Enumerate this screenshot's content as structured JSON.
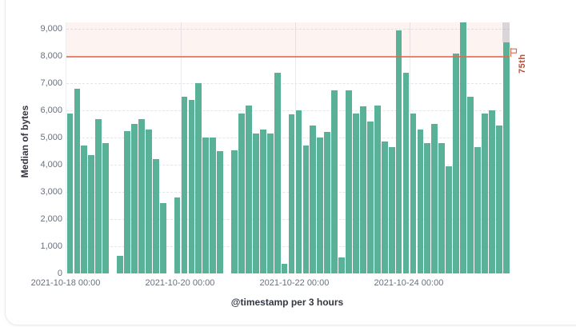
{
  "chart_data": {
    "type": "bar",
    "title": "",
    "xlabel": "@timestamp per 3 hours",
    "ylabel": "Median of bytes",
    "x_start": "2021-10-18 00:00",
    "bucket_hours": 3,
    "values": [
      5900,
      6800,
      4700,
      4350,
      5700,
      4800,
      null,
      650,
      5250,
      5500,
      5700,
      5300,
      4200,
      2600,
      null,
      2800,
      6500,
      6400,
      7000,
      5000,
      5000,
      4500,
      null,
      4550,
      5900,
      6200,
      5150,
      5300,
      5150,
      7400,
      350,
      5850,
      6000,
      4700,
      5450,
      5000,
      5200,
      6750,
      600,
      6750,
      5900,
      6150,
      5600,
      6200,
      4850,
      4650,
      8950,
      7400,
      5900,
      5300,
      4800,
      5500,
      4800,
      3950,
      8100,
      9250,
      6500,
      4650,
      5900,
      6000,
      5450,
      8500
    ],
    "x_ticks": [
      {
        "label": "2021-10-18 00:00",
        "slot": 0
      },
      {
        "label": "2021-10-20 00:00",
        "slot": 16
      },
      {
        "label": "2021-10-22 00:00",
        "slot": 32
      },
      {
        "label": "2021-10-24 00:00",
        "slot": 48
      }
    ],
    "y_ticks": [
      "0",
      "1,000",
      "2,000",
      "3,000",
      "4,000",
      "5,000",
      "6,000",
      "7,000",
      "8,000",
      "9,000"
    ],
    "y_tick_values": [
      0,
      1000,
      2000,
      3000,
      4000,
      5000,
      6000,
      7000,
      8000,
      9000
    ],
    "ylim": [
      0,
      9250
    ],
    "grid": true,
    "legend_position": "none",
    "threshold": {
      "value": 8000,
      "label": "75th"
    },
    "partial_last_bucket": true,
    "colors": {
      "bar": "#59b198",
      "threshold_line": "#e7664c",
      "threshold_fill": "rgba(231,102,76,0.08)",
      "threshold_label": "#bf4a31",
      "endzone": "rgba(150,158,172,0.35)",
      "tick_text": "#69707d",
      "axis_title": "#343741"
    }
  }
}
